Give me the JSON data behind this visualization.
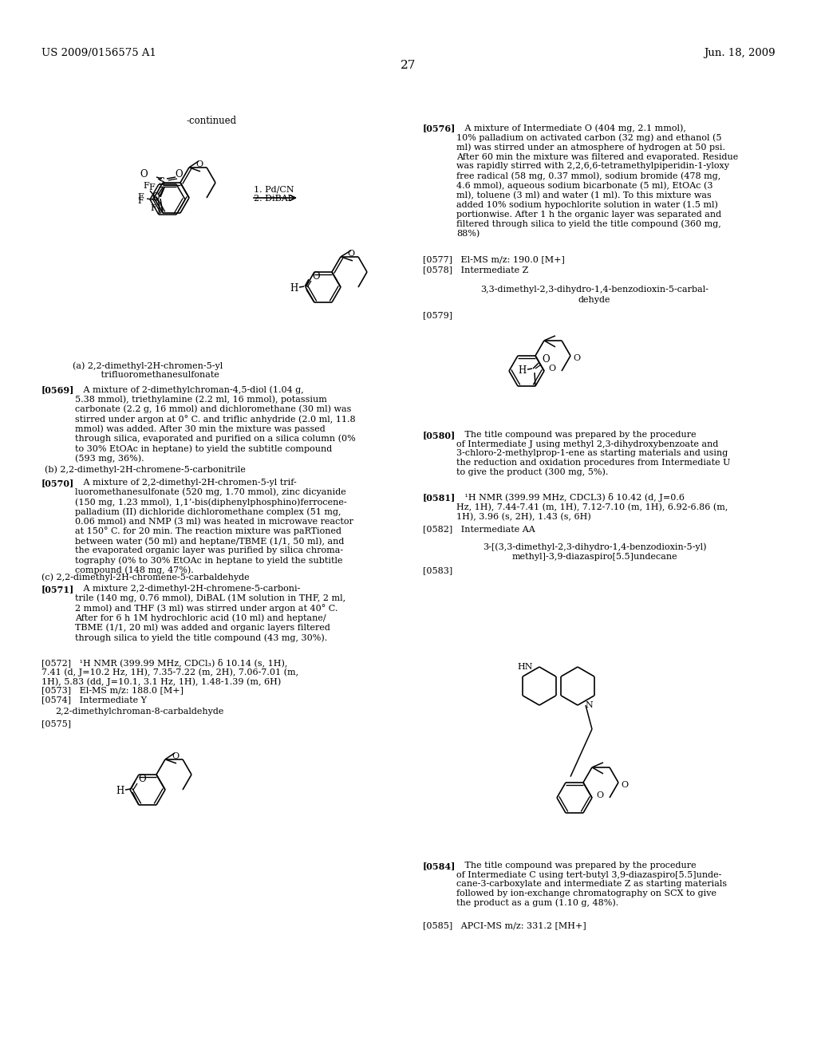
{
  "page_num": "27",
  "patent_left": "US 2009/0156575 A1",
  "patent_right": "Jun. 18, 2009",
  "bg": "#ffffff",
  "continued_label": "-continued",
  "rxn_label1": "1. Pd/CN",
  "rxn_label2": "2. DiBAl",
  "compound_label_a": "(a) 2,2-dimethyl-2H-chromen-5-yl\n         trifluoromethanesulfonate",
  "label_b": "    (b) 2,2-dimethyl-2H-chromene-5-carbonitrile",
  "label_c": "    (c) 2,2-dimethyl-2H-chromene-5-carbaldehyde",
  "name_y": "2,2-dimethylchroman-8-carbaldehyde",
  "name_z_1": "3,3-dimethyl-2,3-dihydro-1,4-benzodioxin-5-carbal-",
  "name_z_2": "dehyde",
  "name_aa_1": "3-[(3,3-dimethyl-2,3-dihydro-1,4-benzodioxin-5-yl)",
  "name_aa_2": "methyl]-3,9-diazaspiro[5.5]undecane",
  "p0569_tag": "[0569]",
  "p0569_body": "   A mixture of 2-dimethylchroman-4,5-diol (1.04 g,\n5.38 mmol), triethylamine (2.2 ml, 16 mmol), potassium\ncarbonate (2.2 g, 16 mmol) and dichloromethane (30 ml) was\nstirred under argon at 0° C. and triflic anhydride (2.0 ml, 11.8\nmmol) was added. After 30 min the mixture was passed\nthrough silica, evaporated and purified on a silica column (0%\nto 30% EtOAc in heptane) to yield the subtitle compound\n(593 mg, 36%).",
  "p0570_tag": "[0570]",
  "p0570_body": "   A mixture of 2,2-dimethyl-2H-chromen-5-yl trif-\nluoromethanesulfonate (520 mg, 1.70 mmol), zinc dicyanide\n(150 mg, 1.23 mmol), 1,1’-bis(diphenylphosphino)ferrocene-\npalladium (II) dichloride dichloromethane complex (51 mg,\n0.06 mmol) and NMP (3 ml) was heated in microwave reactor\nat 150° C. for 20 min. The reaction mixture was paRTioned\nbetween water (50 ml) and heptane/TBME (1/1, 50 ml), and\nthe evaporated organic layer was purified by silica chroma-\ntography (0% to 30% EtOAc in heptane to yield the subtitle\ncompound (148 mg, 47%).",
  "p0571_tag": "[0571]",
  "p0571_body": "   A mixture 2,2-dimethyl-2H-chromene-5-carboni-\ntrile (140 mg, 0.76 mmol), DiBAL (1M solution in THF, 2 ml,\n2 mmol) and THF (3 ml) was stirred under argon at 40° C.\nAfter for 6 h 1M hydrochloric acid (10 ml) and heptane/\nTBME (1/1, 20 ml) was added and organic layers filtered\nthrough silica to yield the title compound (43 mg, 30%).",
  "p0572": "[0572]   ¹H NMR (399.99 MHz, CDCl₃) δ 10.14 (s, 1H),\n7.41 (d, J=10.2 Hz, 1H), 7.35-7.22 (m, 2H), 7.06-7.01 (m,\n1H), 5.83 (dd, J=10.1, 3.1 Hz, 1H), 1.48-1.39 (m, 6H)",
  "p0573": "[0573]   El-MS m/z: 188.0 [M+]",
  "p0574": "[0574]   Intermediate Y",
  "p0575": "[0575]",
  "p0576_tag": "[0576]",
  "p0576_body": "   A mixture of Intermediate O (404 mg, 2.1 mmol),\n10% palladium on activated carbon (32 mg) and ethanol (5\nml) was stirred under an atmosphere of hydrogen at 50 psi.\nAfter 60 min the mixture was filtered and evaporated. Residue\nwas rapidly stirred with 2,2,6,6-tetramethylpiperidin-1-yloxy\nfree radical (58 mg, 0.37 mmol), sodium bromide (478 mg,\n4.6 mmol), aqueous sodium bicarbonate (5 ml), EtOAc (3\nml), toluene (3 ml) and water (1 ml). To this mixture was\nadded 10% sodium hypochlorite solution in water (1.5 ml)\nportionwise. After 1 h the organic layer was separated and\nfiltered through silica to yield the title compound (360 mg,\n88%)",
  "p0577": "[0577]   El-MS m/z: 190.0 [M+]",
  "p0578": "[0578]   Intermediate Z",
  "p0579": "[0579]",
  "p0580_tag": "[0580]",
  "p0580_body": "   The title compound was prepared by the procedure\nof Intermediate J using methyl 2,3-dihydroxybenzoate and\n3-chloro-2-methylprop-1-ene as starting materials and using\nthe reduction and oxidation procedures from Intermediate U\nto give the product (300 mg, 5%).",
  "p0581_tag": "[0581]",
  "p0581_body": "   ¹H NMR (399.99 MHz, CDCL3) δ 10.42 (d, J=0.6\nHz, 1H), 7.44-7.41 (m, 1H), 7.12-7.10 (m, 1H), 6.92-6.86 (m,\n1H), 3.96 (s, 2H), 1.43 (s, 6H)",
  "p0582": "[0582]   Intermediate AA",
  "p0583": "[0583]",
  "p0584_tag": "[0584]",
  "p0584_body": "   The title compound was prepared by the procedure\nof Intermediate C using tert-butyl 3,9-diazaspiro[5.5]unde-\ncane-3-carboxylate and intermediate Z as starting materials\nfollowed by ion-exchange chromatography on SCX to give\nthe product as a gum (1.10 g, 48%).",
  "p0585": "[0585]   APCI-MS m/z: 331.2 [MH+]"
}
